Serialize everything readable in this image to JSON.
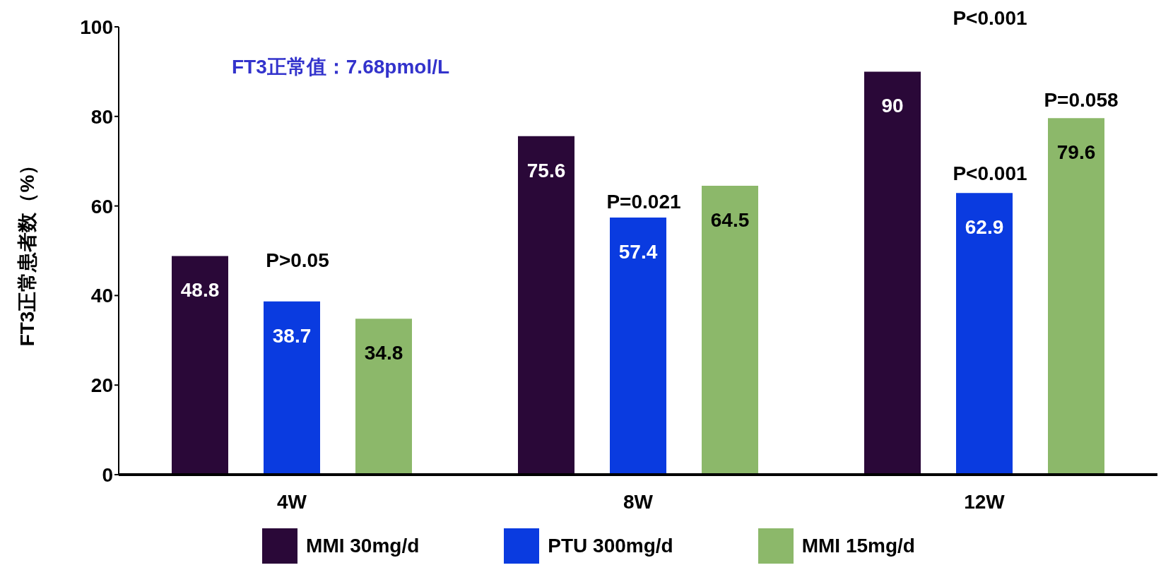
{
  "chart_data": {
    "type": "bar",
    "ylabel": "FT3正常患者数（%）",
    "categories": [
      "4W",
      "8W",
      "12W"
    ],
    "series": [
      {
        "name": "MMI 30mg/d",
        "color": "#2a0838",
        "values": [
          48.8,
          75.6,
          90
        ]
      },
      {
        "name": "PTU 300mg/d",
        "color": "#0a3be0",
        "values": [
          38.7,
          57.4,
          62.9
        ]
      },
      {
        "name": "MMI 15mg/d",
        "color": "#8cb86a",
        "values": [
          34.8,
          64.5,
          79.6
        ]
      }
    ],
    "ylim": [
      0,
      100
    ],
    "yticks": [
      0,
      20,
      40,
      60,
      80,
      100
    ],
    "grid": false,
    "legend": "bottom",
    "data_labels": true,
    "annotations": [
      "FT3正常值：7.68pmol/L",
      "P>0.05",
      "P=0.021",
      "P<0.001",
      "P<0.001",
      "P=0.058"
    ]
  }
}
